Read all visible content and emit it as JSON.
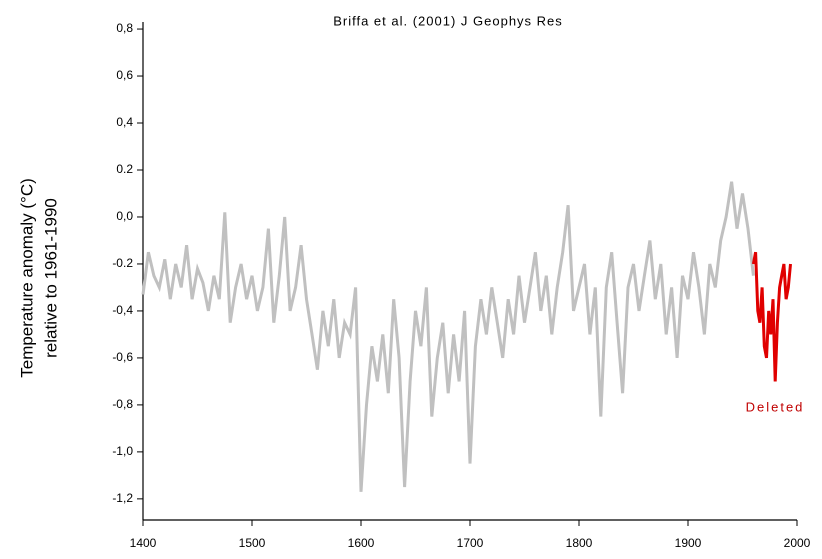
{
  "chart_data": {
    "type": "line",
    "title": "Briffa et al. (2001) J Geophys Res",
    "ylabel": [
      "Temperature anomaly (°C)",
      "relative to 1961-1990"
    ],
    "annotation": "Deleted",
    "xlim": [
      1400,
      2000
    ],
    "xticks": [
      1400,
      1500,
      1600,
      1700,
      1800,
      1900,
      2000
    ],
    "ylim": [
      -1.29,
      0.83
    ],
    "yticks": [
      {
        "value": 0.8,
        "label": "0,8"
      },
      {
        "value": 0.6,
        "label": "0,6"
      },
      {
        "value": 0.4,
        "label": "0,4"
      },
      0.2,
      {
        "value": 0.0,
        "label": "0,0"
      },
      -0.2,
      {
        "value": -0.4,
        "label": "-0,4"
      },
      {
        "value": -0.6,
        "label": "-0,6"
      },
      {
        "value": -0.8,
        "label": "-0,8"
      },
      {
        "value": -1.0,
        "label": "-1,0"
      },
      {
        "value": -1.2,
        "label": "-1,2"
      }
    ],
    "series": [
      {
        "color": "#c0c0c0",
        "x": [
          1400,
          1405,
          1410,
          1415,
          1420,
          1425,
          1430,
          1435,
          1440,
          1445,
          1450,
          1455,
          1460,
          1465,
          1470,
          1475,
          1480,
          1485,
          1490,
          1495,
          1500,
          1505,
          1510,
          1515,
          1520,
          1525,
          1530,
          1535,
          1540,
          1545,
          1550,
          1555,
          1560,
          1565,
          1570,
          1575,
          1580,
          1585,
          1590,
          1595,
          1600,
          1605,
          1610,
          1615,
          1620,
          1625,
          1630,
          1635,
          1640,
          1645,
          1650,
          1655,
          1660,
          1665,
          1670,
          1675,
          1680,
          1685,
          1690,
          1695,
          1700,
          1705,
          1710,
          1715,
          1720,
          1725,
          1730,
          1735,
          1740,
          1745,
          1750,
          1755,
          1760,
          1765,
          1770,
          1775,
          1780,
          1785,
          1790,
          1795,
          1800,
          1805,
          1810,
          1815,
          1820,
          1825,
          1830,
          1835,
          1840,
          1845,
          1850,
          1855,
          1860,
          1865,
          1870,
          1875,
          1880,
          1885,
          1890,
          1895,
          1900,
          1905,
          1910,
          1915,
          1920,
          1925,
          1930,
          1935,
          1940,
          1945,
          1950,
          1955,
          1960
        ],
        "values": [
          -0.33,
          -0.15,
          -0.25,
          -0.3,
          -0.18,
          -0.35,
          -0.2,
          -0.3,
          -0.12,
          -0.35,
          -0.22,
          -0.28,
          -0.4,
          -0.25,
          -0.35,
          0.02,
          -0.45,
          -0.3,
          -0.2,
          -0.35,
          -0.25,
          -0.4,
          -0.3,
          -0.05,
          -0.45,
          -0.25,
          0.0,
          -0.4,
          -0.3,
          -0.12,
          -0.35,
          -0.5,
          -0.65,
          -0.4,
          -0.55,
          -0.35,
          -0.6,
          -0.45,
          -0.5,
          -0.3,
          -1.17,
          -0.8,
          -0.55,
          -0.7,
          -0.5,
          -0.75,
          -0.35,
          -0.6,
          -1.15,
          -0.7,
          -0.4,
          -0.55,
          -0.3,
          -0.85,
          -0.6,
          -0.45,
          -0.75,
          -0.5,
          -0.7,
          -0.4,
          -1.05,
          -0.55,
          -0.35,
          -0.5,
          -0.3,
          -0.45,
          -0.6,
          -0.35,
          -0.5,
          -0.25,
          -0.45,
          -0.3,
          -0.15,
          -0.4,
          -0.25,
          -0.5,
          -0.3,
          -0.15,
          0.05,
          -0.4,
          -0.3,
          -0.2,
          -0.5,
          -0.3,
          -0.85,
          -0.3,
          -0.15,
          -0.45,
          -0.75,
          -0.3,
          -0.2,
          -0.4,
          -0.25,
          -0.1,
          -0.35,
          -0.2,
          -0.5,
          -0.3,
          -0.6,
          -0.25,
          -0.35,
          -0.15,
          -0.3,
          -0.5,
          -0.2,
          -0.3,
          -0.1,
          0.0,
          0.15,
          -0.05,
          0.1,
          -0.05,
          -0.25
        ]
      },
      {
        "color": "#e00000",
        "x": [
          1960,
          1962,
          1964,
          1966,
          1968,
          1970,
          1972,
          1974,
          1976,
          1978,
          1980,
          1982,
          1984,
          1986,
          1988,
          1990,
          1992,
          1994
        ],
        "values": [
          -0.2,
          -0.15,
          -0.4,
          -0.45,
          -0.3,
          -0.55,
          -0.6,
          -0.4,
          -0.5,
          -0.35,
          -0.7,
          -0.45,
          -0.3,
          -0.25,
          -0.2,
          -0.35,
          -0.3,
          -0.2
        ]
      }
    ]
  }
}
